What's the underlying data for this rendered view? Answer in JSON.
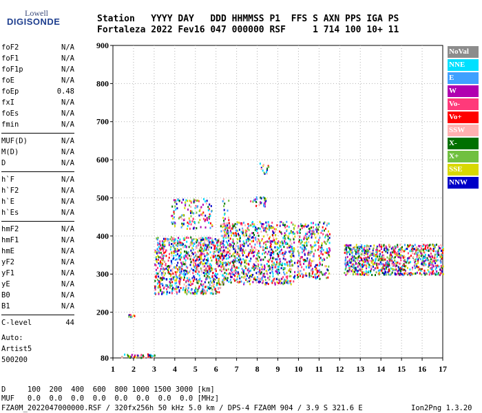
{
  "logo": {
    "line1": "Lowell",
    "line2": "DIGISONDE"
  },
  "header": {
    "row1": "Station   YYYY DAY   DDD HHMMSS P1  FFS S AXN PPS IGA PS",
    "row2": "Fortaleza 2022 Fev16 047 000000 RSF     1 714 100 10+ 11"
  },
  "params": [
    {
      "name": "foF2",
      "value": "N/A"
    },
    {
      "name": "foF1",
      "value": "N/A"
    },
    {
      "name": "foF1p",
      "value": "N/A"
    },
    {
      "name": "foE",
      "value": "N/A"
    },
    {
      "name": "foEp",
      "value": "0.48"
    },
    {
      "name": "fxI",
      "value": "N/A"
    },
    {
      "name": "foEs",
      "value": "N/A"
    },
    {
      "name": "fmin",
      "value": "N/A"
    },
    {
      "name": "MUF(D)",
      "value": "N/A"
    },
    {
      "name": "M(D)",
      "value": "N/A"
    },
    {
      "name": "D",
      "value": "N/A"
    },
    {
      "name": "h`F",
      "value": "N/A"
    },
    {
      "name": "h`F2",
      "value": "N/A"
    },
    {
      "name": "h`E",
      "value": "N/A"
    },
    {
      "name": "h`Es",
      "value": "N/A"
    },
    {
      "name": "hmF2",
      "value": "N/A"
    },
    {
      "name": "hmF1",
      "value": "N/A"
    },
    {
      "name": "hmE",
      "value": "N/A"
    },
    {
      "name": "yF2",
      "value": "N/A"
    },
    {
      "name": "yF1",
      "value": "N/A"
    },
    {
      "name": "yE",
      "value": "N/A"
    },
    {
      "name": "B0",
      "value": "N/A"
    },
    {
      "name": "B1",
      "value": "N/A"
    },
    {
      "name": "C-level",
      "value": "44"
    }
  ],
  "autoscale": {
    "line1": "Auto:",
    "line2": "Artist5",
    "line3": "500200"
  },
  "legend": [
    {
      "label": "NoVal",
      "color": "#8c8c8c"
    },
    {
      "label": "NNE",
      "color": "#00e0ff"
    },
    {
      "label": "E",
      "color": "#3fa0ff"
    },
    {
      "label": "W",
      "color": "#b000b0"
    },
    {
      "label": "Vo-",
      "color": "#ff3a7a"
    },
    {
      "label": "Vo+",
      "color": "#ff0000"
    },
    {
      "label": "SSW",
      "color": "#ffb0b0"
    },
    {
      "label": "X-",
      "color": "#007000"
    },
    {
      "label": "X+",
      "color": "#70c040"
    },
    {
      "label": "SSE",
      "color": "#d8d800"
    },
    {
      "label": "NNW",
      "color": "#0000c8"
    }
  ],
  "chart_data": {
    "type": "scatter",
    "xlabel": "",
    "ylabel": "",
    "xlim": [
      1,
      17
    ],
    "ylim": [
      80,
      900
    ],
    "x_ticks": [
      "1",
      "2",
      "3",
      "4",
      "5",
      "6",
      "7",
      "8",
      "9",
      "10",
      "11",
      "12",
      "13",
      "14",
      "15",
      "16",
      "17"
    ],
    "y_ticks": [
      "80",
      "200",
      "300",
      "400",
      "500",
      "600",
      "700",
      "800",
      "900"
    ],
    "clusters": [
      {
        "f": [
          1.4,
          3.0
        ],
        "h": [
          82,
          92
        ],
        "n": 45
      },
      {
        "f": [
          1.7,
          2.1
        ],
        "h": [
          190,
          198
        ],
        "n": 10
      },
      {
        "f": [
          3.0,
          6.2
        ],
        "h": [
          250,
          400
        ],
        "n": 900
      },
      {
        "f": [
          6.2,
          9.8
        ],
        "h": [
          275,
          440
        ],
        "n": 900
      },
      {
        "f": [
          3.8,
          5.8
        ],
        "h": [
          420,
          500
        ],
        "n": 140
      },
      {
        "f": [
          6.3,
          6.6
        ],
        "h": [
          400,
          500
        ],
        "n": 30
      },
      {
        "f": [
          7.6,
          8.4
        ],
        "h": [
          480,
          505
        ],
        "n": 30
      },
      {
        "f": [
          8.1,
          8.6
        ],
        "h": [
          565,
          595
        ],
        "n": 14
      },
      {
        "f": [
          9.9,
          11.5
        ],
        "h": [
          290,
          440
        ],
        "n": 300
      },
      {
        "f": [
          12.2,
          17.0
        ],
        "h": [
          300,
          380
        ],
        "n": 900
      }
    ]
  },
  "bottom": {
    "d_row": "D     100  200  400  600  800 1000 1500 3000 [km]",
    "muf_row": "MUF   0.0  0.0  0.0  0.0  0.0  0.0  0.0  0.0 [MHz]",
    "status_left": "FZA0M_2022047000000.RSF / 320fx256h 50 kHz 5.0 km / DPS-4 FZA0M 904 / 3.9 S 321.6 E",
    "status_right": "Ion2Png 1.3.20"
  }
}
